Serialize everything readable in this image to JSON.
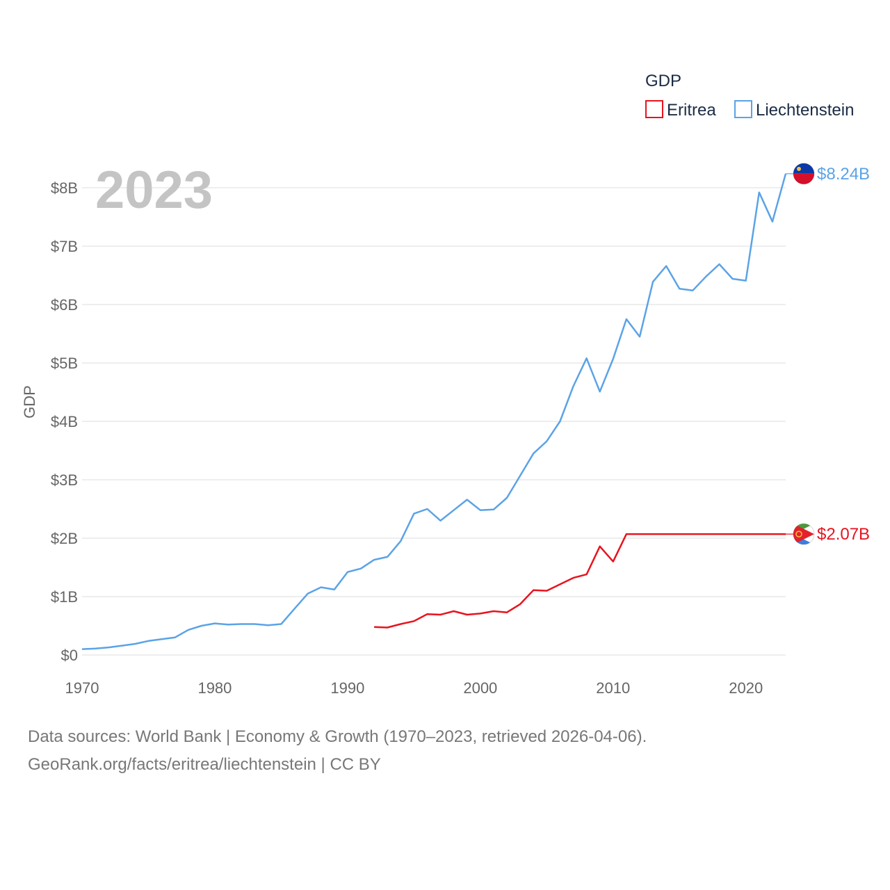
{
  "chart_data": {
    "type": "line",
    "title": "",
    "year_label": "2023",
    "legend_title": "GDP",
    "ylabel": "GDP",
    "xlabel": "",
    "xlim": [
      1970,
      2023
    ],
    "ylim": [
      0,
      8500000000
    ],
    "x_ticks": [
      1970,
      1980,
      1990,
      2000,
      2010,
      2020
    ],
    "y_ticks": [
      {
        "value": 0,
        "label": "$0"
      },
      {
        "value": 1000000000,
        "label": "$1B"
      },
      {
        "value": 2000000000,
        "label": "$2B"
      },
      {
        "value": 3000000000,
        "label": "$3B"
      },
      {
        "value": 4000000000,
        "label": "$4B"
      },
      {
        "value": 5000000000,
        "label": "$5B"
      },
      {
        "value": 6000000000,
        "label": "$6B"
      },
      {
        "value": 7000000000,
        "label": "$7B"
      },
      {
        "value": 8000000000,
        "label": "$8B"
      }
    ],
    "grid": true,
    "legend_position": "top-right",
    "series": [
      {
        "name": "Eritrea",
        "color": "#e8131e",
        "end_label": "$2.07B",
        "flag": "eritrea-flag-icon",
        "x": [
          1992,
          1993,
          1994,
          1995,
          1996,
          1997,
          1998,
          1999,
          2000,
          2001,
          2002,
          2003,
          2004,
          2005,
          2006,
          2007,
          2008,
          2009,
          2010,
          2011,
          2023
        ],
        "values": [
          480000000,
          470000000,
          530000000,
          580000000,
          700000000,
          690000000,
          750000000,
          690000000,
          710000000,
          750000000,
          730000000,
          870000000,
          1110000000,
          1100000000,
          1210000000,
          1320000000,
          1380000000,
          1860000000,
          1600000000,
          2070000000,
          2070000000
        ]
      },
      {
        "name": "Liechtenstein",
        "color": "#5ba3e6",
        "end_label": "$8.24B",
        "flag": "liechtenstein-flag-icon",
        "x": [
          1970,
          1971,
          1972,
          1973,
          1974,
          1975,
          1976,
          1977,
          1978,
          1979,
          1980,
          1981,
          1982,
          1983,
          1984,
          1985,
          1986,
          1987,
          1988,
          1989,
          1990,
          1991,
          1992,
          1993,
          1994,
          1995,
          1996,
          1997,
          1998,
          1999,
          2000,
          2001,
          2002,
          2003,
          2004,
          2005,
          2006,
          2007,
          2008,
          2009,
          2010,
          2011,
          2012,
          2013,
          2014,
          2015,
          2016,
          2017,
          2018,
          2019,
          2020,
          2021,
          2022,
          2023
        ],
        "values": [
          100000000,
          110000000,
          130000000,
          160000000,
          190000000,
          240000000,
          270000000,
          300000000,
          430000000,
          500000000,
          540000000,
          520000000,
          530000000,
          530000000,
          510000000,
          530000000,
          790000000,
          1050000000,
          1160000000,
          1120000000,
          1420000000,
          1480000000,
          1630000000,
          1680000000,
          1950000000,
          2420000000,
          2500000000,
          2300000000,
          2480000000,
          2660000000,
          2480000000,
          2490000000,
          2690000000,
          3070000000,
          3450000000,
          3660000000,
          4000000000,
          4600000000,
          5080000000,
          4510000000,
          5070000000,
          5750000000,
          5450000000,
          6390000000,
          6660000000,
          6270000000,
          6240000000,
          6480000000,
          6690000000,
          6440000000,
          6410000000,
          7920000000,
          7420000000,
          8240000000
        ]
      }
    ]
  },
  "footer": {
    "line1": "Data sources: World Bank | Economy & Growth (1970–2023, retrieved 2026-04-06).",
    "line2": "GeoRank.org/facts/eritrea/liechtenstein | CC BY"
  }
}
